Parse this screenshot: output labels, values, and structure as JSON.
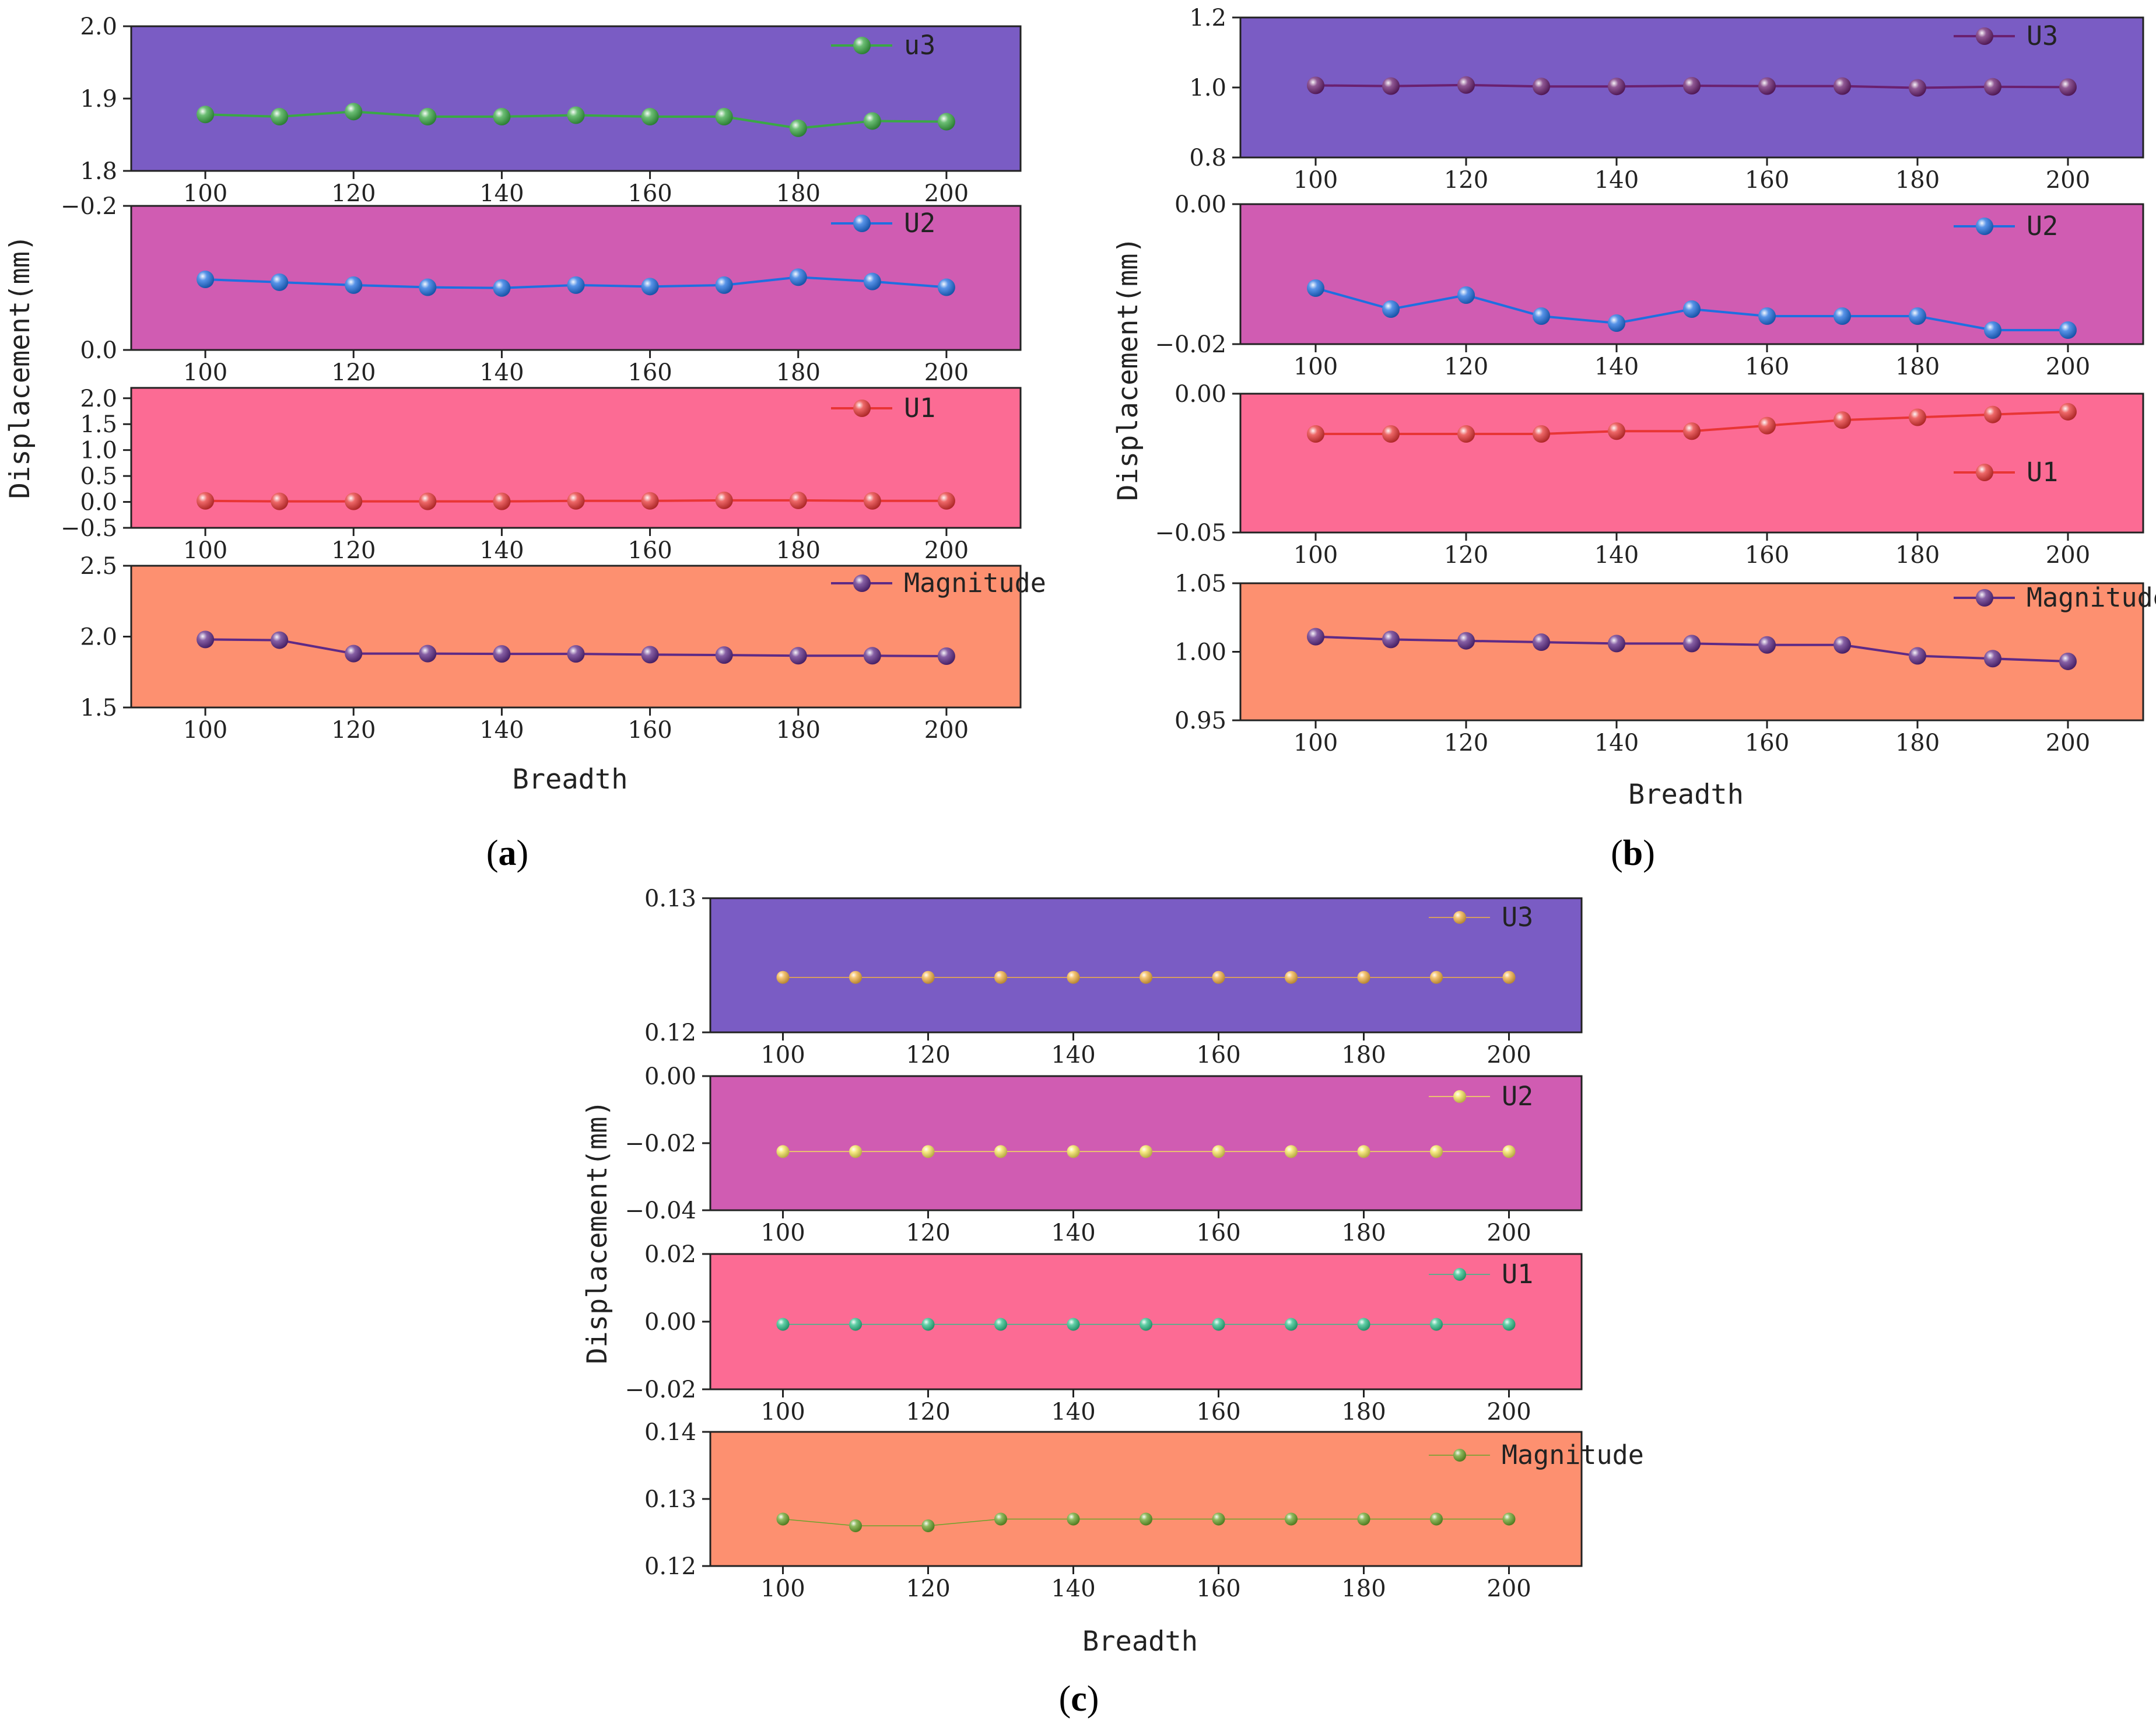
{
  "figure": {
    "panel_labels": [
      {
        "open": "(",
        "letter": "a",
        "close": ")"
      },
      {
        "open": "(",
        "letter": "b",
        "close": ")"
      },
      {
        "open": "(",
        "letter": "c",
        "close": ")"
      }
    ]
  },
  "colors": {
    "bg_u3": "#7a5cc4",
    "bg_u2": "#d05cb2",
    "bg_u1": "#fc6b94",
    "bg_mag": "#fd9070"
  },
  "chart_data": [
    {
      "panel": "a",
      "type": "line",
      "xlabel": "Breadth",
      "ylabel": "Displacement(mm)",
      "x": [
        100,
        110,
        120,
        130,
        140,
        150,
        160,
        170,
        180,
        190,
        200
      ],
      "x_ticks": [
        "100",
        "120",
        "140",
        "160",
        "180",
        "200"
      ],
      "xlim": [
        90,
        210
      ],
      "subplots": [
        {
          "name": "u3",
          "legend": "u3",
          "color": "#3aa845",
          "bg": "bg_u3",
          "ylim": [
            1.8,
            2.0
          ],
          "y_ticks": [
            "1.8",
            "1.9",
            "2.0"
          ],
          "values": [
            1.878,
            1.875,
            1.882,
            1.875,
            1.875,
            1.877,
            1.875,
            1.875,
            1.859,
            1.869,
            1.868
          ]
        },
        {
          "name": "U2",
          "legend": "U2",
          "color": "#1f6fe0",
          "bg": "bg_u2",
          "ylim": [
            0.0,
            -0.2
          ],
          "y_ticks": [
            "0.0",
            "−0.2"
          ],
          "values": [
            -0.098,
            -0.094,
            -0.09,
            -0.087,
            -0.086,
            -0.09,
            -0.088,
            -0.09,
            -0.101,
            -0.095,
            -0.087
          ]
        },
        {
          "name": "U1",
          "legend": "U1",
          "color": "#e83535",
          "bg": "bg_u1",
          "ylim": [
            -0.5,
            2.2
          ],
          "y_ticks": [
            "−0.5",
            "0.0",
            "0.5",
            "1.0",
            "1.5",
            "2.0"
          ],
          "values": [
            0.02,
            0.01,
            0.01,
            0.01,
            0.01,
            0.02,
            0.02,
            0.03,
            0.03,
            0.02,
            0.02
          ]
        },
        {
          "name": "Magnitude",
          "legend": "Magnitude",
          "color": "#5e2a86",
          "bg": "bg_mag",
          "ylim": [
            1.5,
            2.5
          ],
          "y_ticks": [
            "1.5",
            "2.0",
            "2.5"
          ],
          "values": [
            1.98,
            1.975,
            1.88,
            1.88,
            1.878,
            1.878,
            1.873,
            1.87,
            1.865,
            1.865,
            1.862
          ]
        }
      ]
    },
    {
      "panel": "b",
      "type": "line",
      "xlabel": "Breadth",
      "ylabel": "Displacement(mm)",
      "x": [
        100,
        110,
        120,
        130,
        140,
        150,
        160,
        170,
        180,
        190,
        200
      ],
      "x_ticks": [
        "100",
        "120",
        "140",
        "160",
        "180",
        "200"
      ],
      "xlim": [
        90,
        210
      ],
      "subplots": [
        {
          "name": "U3",
          "legend": "U3",
          "color": "#6a2070",
          "bg": "bg_u3",
          "ylim": [
            0.8,
            1.2
          ],
          "y_ticks": [
            "0.8",
            "1.0",
            "1.2"
          ],
          "values": [
            1.006,
            1.004,
            1.007,
            1.003,
            1.003,
            1.005,
            1.004,
            1.004,
            0.999,
            1.002,
            1.001
          ]
        },
        {
          "name": "U2",
          "legend": "U2",
          "color": "#1f6fe0",
          "bg": "bg_u2",
          "ylim": [
            -0.02,
            0.0
          ],
          "y_ticks": [
            "−0.02",
            "0.00"
          ],
          "values": [
            -0.012,
            -0.015,
            -0.013,
            -0.016,
            -0.017,
            -0.015,
            -0.016,
            -0.016,
            -0.016,
            -0.018,
            -0.018
          ]
        },
        {
          "name": "U1",
          "legend": "U1",
          "color": "#e83535",
          "bg": "bg_u1",
          "ylim": [
            -0.05,
            0.0
          ],
          "y_ticks": [
            "−0.05",
            "0.00"
          ],
          "values": [
            -0.0145,
            -0.0145,
            -0.0145,
            -0.0145,
            -0.0135,
            -0.0135,
            -0.0115,
            -0.0095,
            -0.0085,
            -0.0075,
            -0.0065
          ]
        },
        {
          "name": "Magnitude",
          "legend": "Magnitude",
          "color": "#5e2a86",
          "bg": "bg_mag",
          "ylim": [
            0.95,
            1.05
          ],
          "y_ticks": [
            "0.95",
            "1.00",
            "1.05"
          ],
          "values": [
            1.011,
            1.009,
            1.008,
            1.007,
            1.006,
            1.006,
            1.005,
            1.005,
            0.997,
            0.995,
            0.993
          ]
        }
      ]
    },
    {
      "panel": "c",
      "type": "line",
      "xlabel": "Breadth",
      "ylabel": "Displacement(mm)",
      "x": [
        100,
        110,
        120,
        130,
        140,
        150,
        160,
        170,
        180,
        190,
        200
      ],
      "x_ticks": [
        "100",
        "120",
        "140",
        "160",
        "180",
        "200"
      ],
      "xlim": [
        90,
        210
      ],
      "subplots": [
        {
          "name": "U3",
          "legend": "U3",
          "color": "#f2b145",
          "bg": "bg_u3",
          "ylim": [
            0.12,
            0.13
          ],
          "y_ticks": [
            "0.12",
            "0.13"
          ],
          "values": [
            0.1241,
            0.1241,
            0.1241,
            0.1241,
            0.1241,
            0.1241,
            0.1241,
            0.1241,
            0.1241,
            0.1241,
            0.1241
          ]
        },
        {
          "name": "U2",
          "legend": "U2",
          "color": "#f4e35a",
          "bg": "bg_u2",
          "ylim": [
            -0.04,
            0.0
          ],
          "y_ticks": [
            "−0.04",
            "−0.02",
            "0.00"
          ],
          "values": [
            -0.0225,
            -0.0225,
            -0.0225,
            -0.0225,
            -0.0225,
            -0.0225,
            -0.0225,
            -0.0225,
            -0.0225,
            -0.0225,
            -0.0225
          ]
        },
        {
          "name": "U1",
          "legend": "U1",
          "color": "#2ec08a",
          "bg": "bg_u1",
          "ylim": [
            -0.02,
            0.02
          ],
          "y_ticks": [
            "−0.02",
            "0.00",
            "0.02"
          ],
          "values": [
            -0.0008,
            -0.0008,
            -0.0008,
            -0.0008,
            -0.0008,
            -0.0008,
            -0.0008,
            -0.0008,
            -0.0008,
            -0.0008,
            -0.0008
          ]
        },
        {
          "name": "Magnitude",
          "legend": "Magnitude",
          "color": "#6aa32a",
          "bg": "bg_mag",
          "ylim": [
            0.12,
            0.14
          ],
          "y_ticks": [
            "0.12",
            "0.13",
            "0.14"
          ],
          "values": [
            0.127,
            0.126,
            0.126,
            0.127,
            0.127,
            0.127,
            0.127,
            0.127,
            0.127,
            0.127,
            0.127
          ]
        }
      ]
    }
  ]
}
